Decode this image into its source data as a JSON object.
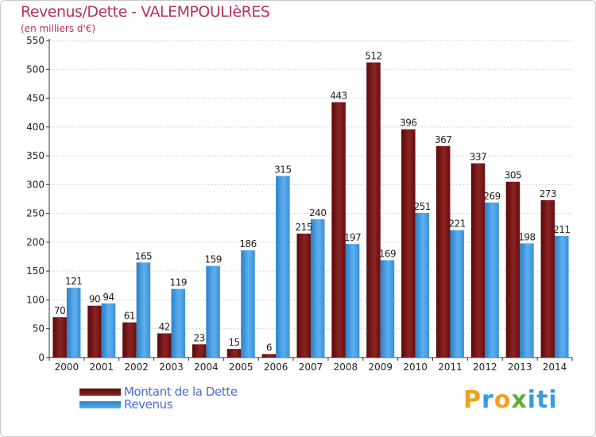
{
  "title": "Revenus/Dette - VALEMPOULIèRES",
  "subtitle": "(en milliers d'€)",
  "colors": {
    "dette": "#7a1010",
    "revenus": "#3a9ae0",
    "title": "#b5325a",
    "legend_text": "#4a6bd8"
  },
  "legend": [
    {
      "label": "Montant de la Dette",
      "color": "#7a1010"
    },
    {
      "label": "Revenus",
      "color": "#3a9ae0"
    }
  ],
  "logo": {
    "text": "Proxiti",
    "letters": [
      "P",
      "r",
      "o",
      "x",
      "i",
      "t",
      "i"
    ],
    "colors": [
      "#f0a020",
      "#3a9ae0",
      "#f0a020",
      "#5cb030",
      "#3a9ae0",
      "#3a9ae0",
      "#3a9ae0"
    ]
  },
  "chart_data": {
    "type": "bar",
    "title": "Revenus/Dette - VALEMPOULIèRES",
    "subtitle": "(en milliers d'€)",
    "categories": [
      "2000",
      "2001",
      "2002",
      "2003",
      "2004",
      "2005",
      "2006",
      "2007",
      "2008",
      "2009",
      "2010",
      "2011",
      "2012",
      "2013",
      "2014"
    ],
    "series": [
      {
        "name": "Montant de la Dette",
        "color": "#7a1010",
        "values": [
          70,
          90,
          61,
          42,
          23,
          15,
          6,
          215,
          443,
          512,
          396,
          367,
          337,
          305,
          273
        ]
      },
      {
        "name": "Revenus",
        "color": "#3a9ae0",
        "values": [
          121,
          94,
          165,
          119,
          159,
          186,
          315,
          240,
          197,
          169,
          251,
          221,
          269,
          198,
          211
        ]
      }
    ],
    "ylim": [
      0,
      550
    ],
    "yticks": [
      0,
      50,
      100,
      150,
      200,
      250,
      300,
      350,
      400,
      450,
      500,
      550
    ],
    "grid": true,
    "legend_position": "bottom-left"
  }
}
